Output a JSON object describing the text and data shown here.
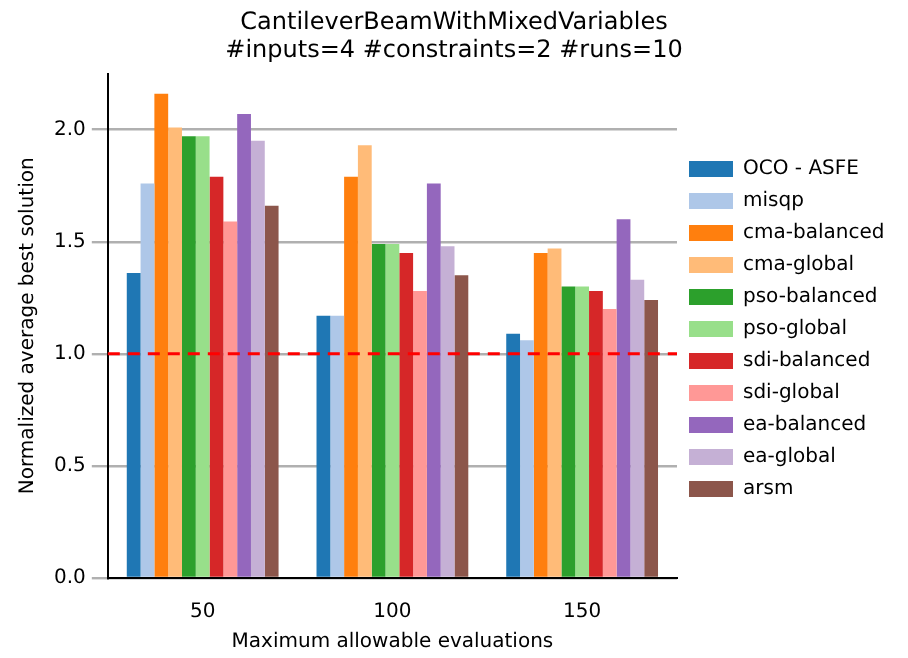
{
  "chart_data": {
    "type": "bar",
    "title": "CantileverBeamWithMixedVariables",
    "subtitle": "#inputs=4 #constraints=2 #runs=10",
    "xlabel": "Maximum allowable evaluations",
    "ylabel": "Normalized average best solution",
    "categories": [
      "50",
      "100",
      "150"
    ],
    "series": [
      {
        "name": "OCO - ASFE",
        "color": "#1f77b4",
        "values": [
          1.36,
          1.17,
          1.09
        ]
      },
      {
        "name": "misqp",
        "color": "#aec7e8",
        "values": [
          1.76,
          1.17,
          1.06
        ]
      },
      {
        "name": "cma-balanced",
        "color": "#ff7f0e",
        "values": [
          2.16,
          1.79,
          1.45
        ]
      },
      {
        "name": "cma-global",
        "color": "#ffbb78",
        "values": [
          2.01,
          1.93,
          1.47
        ]
      },
      {
        "name": "pso-balanced",
        "color": "#2ca02c",
        "values": [
          1.97,
          1.49,
          1.3
        ]
      },
      {
        "name": "pso-global",
        "color": "#98df8a",
        "values": [
          1.97,
          1.49,
          1.3
        ]
      },
      {
        "name": "sdi-balanced",
        "color": "#d62728",
        "values": [
          1.79,
          1.45,
          1.28
        ]
      },
      {
        "name": "sdi-global",
        "color": "#ff9896",
        "values": [
          1.59,
          1.28,
          1.2
        ]
      },
      {
        "name": "ea-balanced",
        "color": "#9467bd",
        "values": [
          2.07,
          1.76,
          1.6
        ]
      },
      {
        "name": "ea-global",
        "color": "#c5b0d5",
        "values": [
          1.95,
          1.48,
          1.33
        ]
      },
      {
        "name": "arsm",
        "color": "#8c564b",
        "values": [
          1.66,
          1.35,
          1.24
        ]
      }
    ],
    "ylim": [
      0,
      2.25
    ],
    "yticks": [
      {
        "value": 0,
        "label": "0.0"
      },
      0.5,
      {
        "value": 1,
        "label": "1.0"
      },
      1.5,
      {
        "value": 2,
        "label": "2.0"
      }
    ],
    "grid": "y",
    "legend": "right",
    "ref_lines": [
      {
        "axis": "y",
        "value": 1,
        "color": "#ff0000",
        "line_style": "dashed"
      }
    ]
  }
}
